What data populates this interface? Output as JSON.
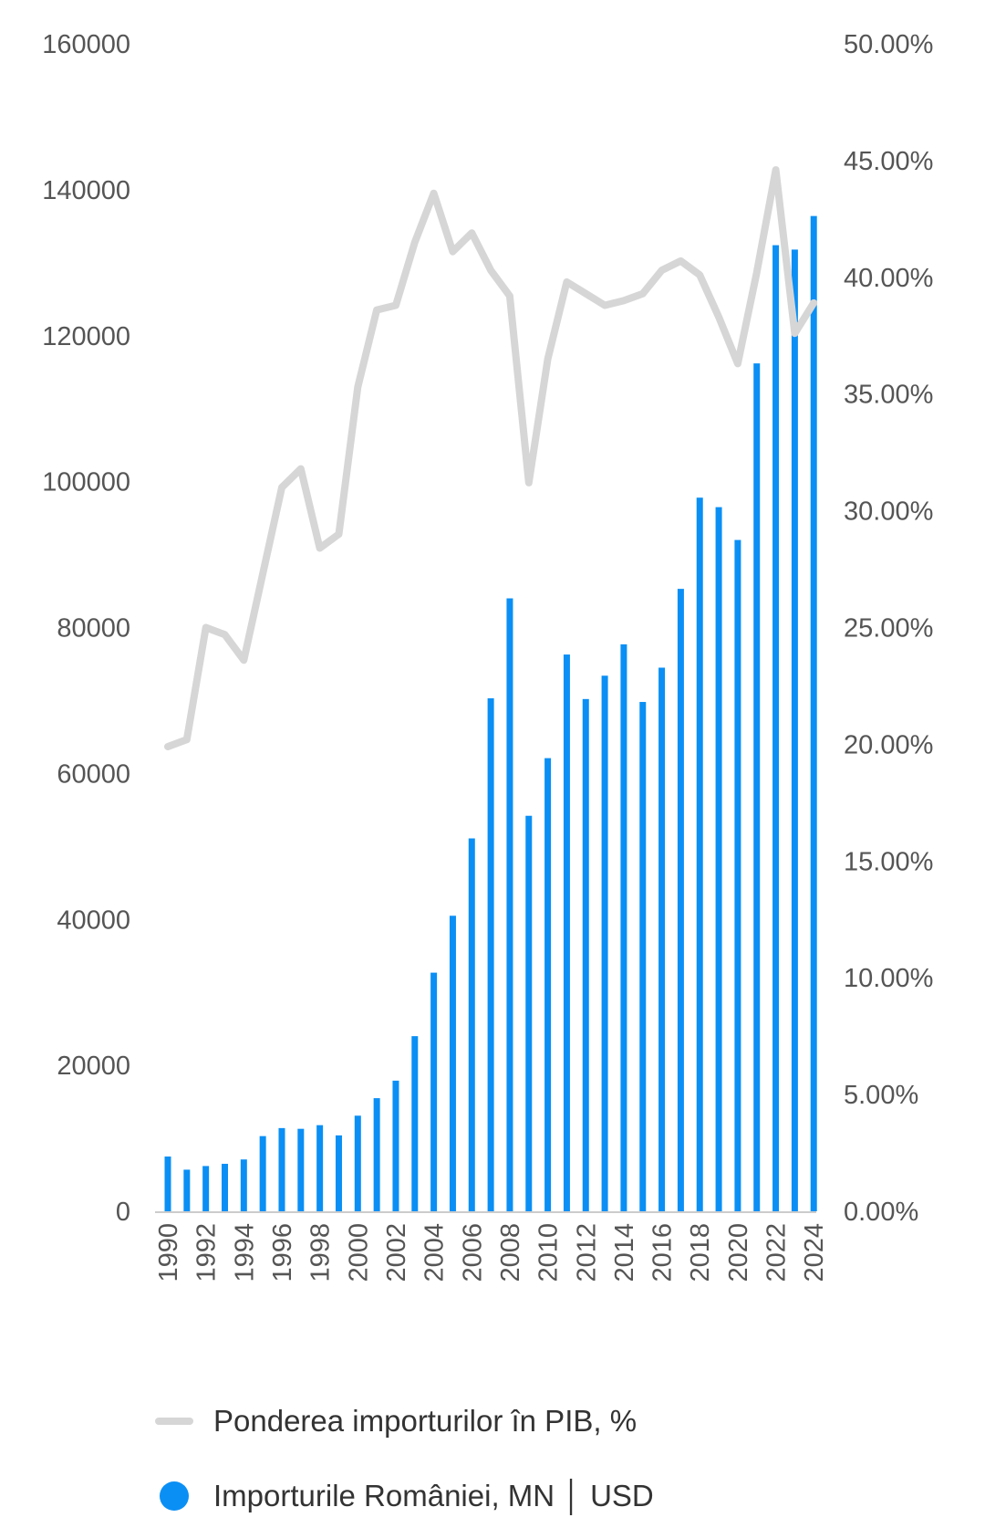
{
  "chart_data": {
    "type": "bar",
    "colors": {
      "bars": "#0a8ff5",
      "line": "#d6d6d6",
      "axis": "#cccccc",
      "text": "#555555"
    },
    "x": [
      1990,
      1991,
      1992,
      1993,
      1994,
      1995,
      1996,
      1997,
      1998,
      1999,
      2000,
      2001,
      2002,
      2003,
      2004,
      2005,
      2006,
      2007,
      2008,
      2009,
      2010,
      2011,
      2012,
      2013,
      2014,
      2015,
      2016,
      2017,
      2018,
      2019,
      2020,
      2021,
      2022,
      2023,
      2024
    ],
    "x_tick_labels": [
      "1990",
      "1992",
      "1994",
      "1996",
      "1998",
      "2000",
      "2002",
      "2004",
      "2006",
      "2008",
      "2010",
      "2012",
      "2014",
      "2016",
      "2018",
      "2020",
      "2022",
      "2024"
    ],
    "y_left": {
      "lim": [
        0,
        160000
      ],
      "ticks": [
        "0",
        "20000",
        "40000",
        "60000",
        "80000",
        "100000",
        "120000",
        "140000",
        "160000"
      ]
    },
    "y_right": {
      "lim": [
        0,
        50
      ],
      "ticks": [
        "0.00%",
        "5.00%",
        "10.00%",
        "15.00%",
        "20.00%",
        "25.00%",
        "30.00%",
        "35.00%",
        "40.00%",
        "45.00%",
        "50.00%"
      ]
    },
    "grid": false,
    "legend_position": "bottom",
    "series": [
      {
        "name": "Importurile României, MN | USD",
        "type": "bar",
        "axis": "left",
        "values": [
          7500,
          5700,
          6200,
          6500,
          7100,
          10300,
          11400,
          11300,
          11800,
          10400,
          13100,
          15500,
          17900,
          24000,
          32700,
          40500,
          51100,
          70300,
          84000,
          54200,
          62100,
          76300,
          70200,
          73400,
          77700,
          69800,
          74500,
          85300,
          97800,
          96500,
          92000,
          116200,
          132400,
          131800,
          136400
        ]
      },
      {
        "name": "Ponderea importurilor în PIB, %",
        "type": "line",
        "axis": "right",
        "values": [
          19.9,
          20.2,
          25.0,
          24.7,
          23.6,
          27.3,
          31.0,
          31.8,
          28.4,
          29.0,
          35.3,
          38.6,
          38.8,
          41.5,
          43.6,
          41.1,
          41.9,
          40.3,
          39.2,
          31.2,
          36.5,
          39.8,
          39.3,
          38.8,
          39.0,
          39.3,
          40.3,
          40.7,
          40.1,
          38.3,
          36.3,
          40.2,
          44.6,
          37.6,
          38.9
        ]
      }
    ]
  },
  "legend": {
    "line_label": "Ponderea importurilor în PIB, %",
    "bar_label": "Importurile României, MN │ USD"
  }
}
